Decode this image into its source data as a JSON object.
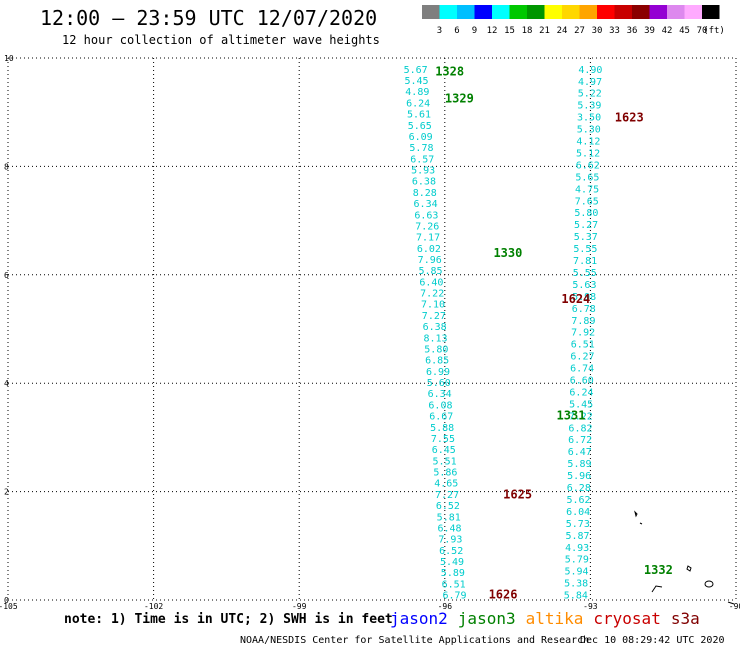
{
  "header": {
    "title": "12:00 – 23:59 UTC 12/07/2020",
    "subtitle": "12 hour collection of altimeter wave heights"
  },
  "scale": {
    "values": [
      "3",
      "6",
      "9",
      "12",
      "15",
      "18",
      "21",
      "24",
      "27",
      "30",
      "33",
      "36",
      "39",
      "42",
      "45",
      "70"
    ],
    "unit": "(ft)",
    "colors": [
      "#7f7f7f",
      "#00ffff",
      "#00bfff",
      "#0000ff",
      "#00ffff",
      "#00c800",
      "#009600",
      "#ffff00",
      "#ffd700",
      "#ffa500",
      "#ff0000",
      "#c80000",
      "#8b0000",
      "#9400d3",
      "#dd88ee",
      "#ffaaff",
      "#000000"
    ]
  },
  "footer": {
    "note": "note: 1) Time is in UTC; 2) SWH is in feet",
    "legend": [
      {
        "name": "jason2",
        "color": "#0000ff"
      },
      {
        "name": "jason3",
        "color": "#008000"
      },
      {
        "name": "altika",
        "color": "#ff8c00"
      },
      {
        "name": "cryosat",
        "color": "#c80000"
      },
      {
        "name": "s3a",
        "color": "#800000"
      }
    ],
    "credit": "NOAA/NESDIS Center for Satellite Applications and Research",
    "timestamp": "Dec 10 08:29:42 UTC 2020"
  },
  "axes": {
    "x_ticks": [
      "-105",
      "-102",
      "-99",
      "-96",
      "-93",
      "-90"
    ],
    "y_ticks": [
      "0",
      "2",
      "4",
      "6",
      "8",
      "10"
    ],
    "xlim": [
      -105,
      -90
    ],
    "ylim": [
      0,
      10
    ]
  },
  "tracks": [
    {
      "color": "#00cccc",
      "start": [
        -96.6,
        9.8
      ],
      "end": [
        -95.8,
        0.1
      ],
      "values": [
        "5.67",
        "5.45",
        "4.89",
        "6.24",
        "5.61",
        "5.65",
        "6.09",
        "5.78",
        "6.57",
        "5.93",
        "6.38",
        "8.28",
        "6.34",
        "6.63",
        "7.26",
        "7.17",
        "6.02",
        "7.96",
        "5.85",
        "6.40",
        "7.22",
        "7.10",
        "7.27",
        "6.38",
        "8.13",
        "5.80",
        "6.85",
        "6.99",
        "5.60",
        "6.34",
        "6.08",
        "6.67",
        "5.88",
        "7.55",
        "6.45",
        "5.51",
        "5.86",
        "4.65",
        "7.27",
        "6.52",
        "5.81",
        "6.48",
        "7.93",
        "6.52",
        "5.49",
        "5.89",
        "6.51",
        "6.79"
      ]
    },
    {
      "color": "#00cccc",
      "start": [
        -93.0,
        9.8
      ],
      "end": [
        -93.3,
        0.1
      ],
      "values": [
        "4.90",
        "4.97",
        "5.22",
        "5.39",
        "3.50",
        "5.30",
        "4.12",
        "5.12",
        "6.62",
        "5.65",
        "4.75",
        "7.65",
        "5.80",
        "5.27",
        "5.37",
        "5.55",
        "7.81",
        "5.55",
        "5.63",
        "5.98",
        "6.78",
        "7.89",
        "7.92",
        "6.51",
        "6.27",
        "6.74",
        "6.60",
        "6.24",
        "5.45",
        "7.22",
        "6.82",
        "6.72",
        "6.47",
        "5.89",
        "5.96",
        "6.28",
        "5.62",
        "6.04",
        "5.73",
        "5.87",
        "4.93",
        "5.79",
        "5.94",
        "5.38",
        "5.84"
      ]
    }
  ],
  "time_labels": [
    {
      "text": "1328",
      "lon": -95.9,
      "lat": 9.75,
      "color": "#008000"
    },
    {
      "text": "1329",
      "lon": -95.7,
      "lat": 9.25,
      "color": "#008000"
    },
    {
      "text": "1623",
      "lon": -92.2,
      "lat": 8.9,
      "color": "#800000"
    },
    {
      "text": "1330",
      "lon": -94.7,
      "lat": 6.4,
      "color": "#008000"
    },
    {
      "text": "1624",
      "lon": -93.3,
      "lat": 5.55,
      "color": "#800000"
    },
    {
      "text": "1331",
      "lon": -93.4,
      "lat": 3.4,
      "color": "#008000"
    },
    {
      "text": "1625",
      "lon": -94.5,
      "lat": 1.95,
      "color": "#800000"
    },
    {
      "text": "1332",
      "lon": -91.6,
      "lat": 0.55,
      "color": "#008000"
    },
    {
      "text": "1626",
      "lon": -94.8,
      "lat": 0.1,
      "color": "#800000"
    }
  ]
}
